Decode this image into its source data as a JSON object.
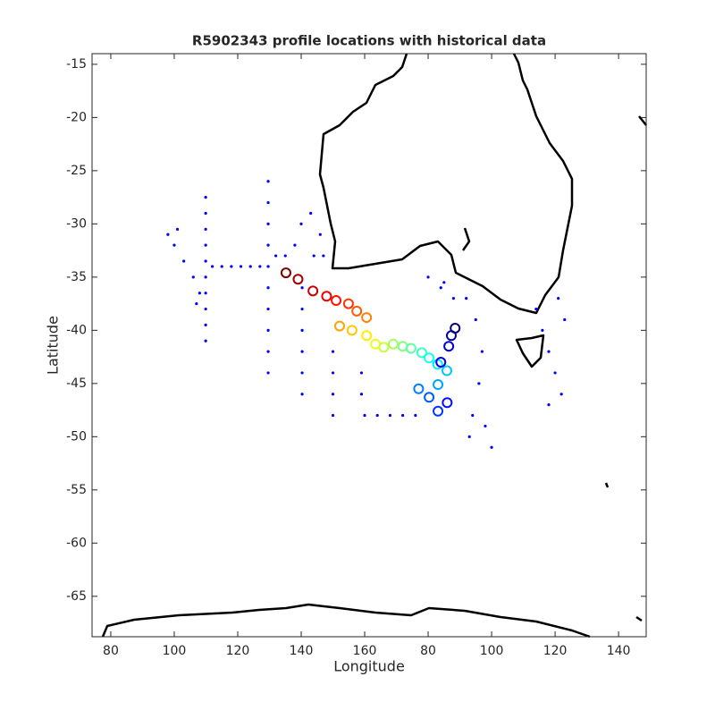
{
  "chart_data": {
    "type": "scatter",
    "title": "R5902343 profile locations with historical data",
    "xlabel": "Longitude",
    "ylabel": "Latitude",
    "xlim": [
      74.1,
      248.7
    ],
    "ylim": [
      -68.8,
      -14
    ],
    "xticks": [
      80,
      100,
      120,
      140,
      160,
      {
        "value": 180,
        "label": "80"
      },
      {
        "value": 200,
        "label": "100"
      },
      {
        "value": 220,
        "label": "120"
      },
      {
        "value": 240,
        "label": "140"
      }
    ],
    "yticks": [
      -15,
      -20,
      -25,
      -30,
      -35,
      -40,
      -45,
      -50,
      -55,
      -60,
      -65
    ],
    "series": [
      {
        "color": "#0000ff",
        "marker": "dot",
        "x": [
          109.9,
          109.9,
          109.9,
          109.9,
          109.9,
          109.9,
          109.9,
          109.9,
          109.9,
          109.9,
          112,
          115,
          118,
          121,
          124,
          127,
          100,
          103,
          106,
          108,
          129.6,
          129.6,
          129.6,
          129.6,
          129.6,
          129.6,
          129.6,
          129.6,
          129.6,
          129.6,
          150,
          150,
          150,
          150,
          140.3,
          140.3,
          140.3,
          140.3,
          140.3,
          140.3,
          140,
          143,
          146,
          147,
          144,
          138,
          135,
          132,
          160,
          164,
          168,
          172,
          176,
          159,
          159,
          192,
          195,
          197,
          196,
          194,
          198,
          200,
          193,
          214,
          216,
          218,
          220,
          222,
          221,
          223,
          218,
          180,
          184,
          188,
          185,
          98,
          101,
          107
        ],
        "y": [
          -27.5,
          -29,
          -30.5,
          -32,
          -33.5,
          -35,
          -36.5,
          -38,
          -39.5,
          -41,
          -34,
          -34,
          -34,
          -34,
          -34,
          -34,
          -32,
          -33.5,
          -35,
          -36.5,
          -26,
          -28,
          -30,
          -32,
          -34,
          -36,
          -38,
          -40,
          -42,
          -44,
          -42,
          -44,
          -46,
          -48,
          -36,
          -38,
          -40,
          -42,
          -44,
          -46,
          -30,
          -29,
          -31,
          -33,
          -33,
          -32,
          -33,
          -33,
          -48,
          -48,
          -48,
          -48,
          -48,
          -44,
          -46,
          -37,
          -39,
          -42,
          -45,
          -48,
          -49,
          -51,
          -50,
          -38,
          -40,
          -42,
          -44,
          -46,
          -37,
          -39,
          -47,
          -35,
          -36,
          -37,
          -35.5,
          -31,
          -30.5,
          -37.5
        ]
      },
      {
        "colormap": "jet_r",
        "marker": "profile",
        "x": [
          135.2,
          139,
          143.7,
          148,
          151,
          154.9,
          157.5,
          160.6,
          152.1,
          156,
          160.6,
          163.4,
          166,
          169,
          172,
          174.6,
          178,
          180.3,
          183,
          185.9,
          183.1,
          177,
          180.3,
          183.1,
          186,
          184,
          186.5,
          187.3,
          188.5
        ],
        "y": [
          -34.6,
          -35.2,
          -36.3,
          -36.8,
          -37.2,
          -37.5,
          -38.2,
          -38.8,
          -39.6,
          -40,
          -40.5,
          -41.3,
          -41.6,
          -41.3,
          -41.5,
          -41.7,
          -42.1,
          -42.6,
          -43.2,
          -43.8,
          -45.1,
          -45.5,
          -46.3,
          -47.6,
          -46.8,
          -43,
          -41.5,
          -40.5,
          -39.8
        ]
      }
    ]
  }
}
